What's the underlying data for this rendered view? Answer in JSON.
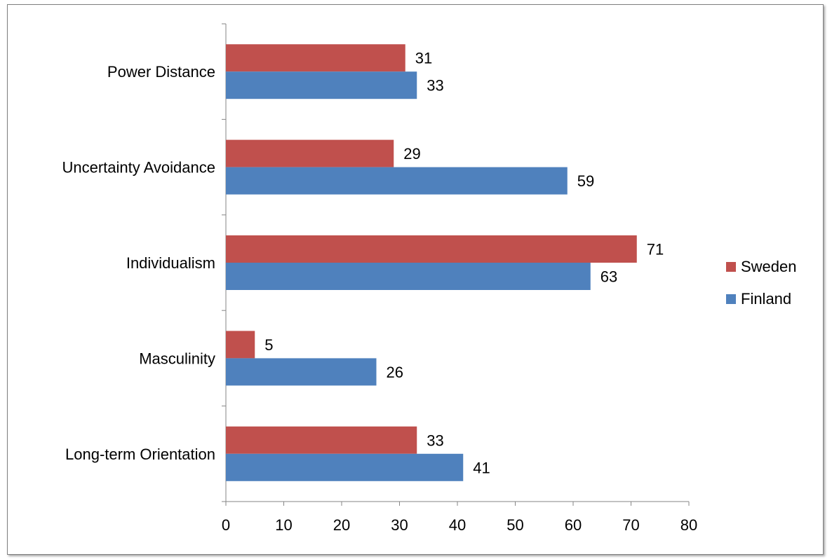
{
  "chart_data": {
    "type": "bar",
    "orientation": "horizontal",
    "title": "",
    "xlabel": "",
    "ylabel": "",
    "categories": [
      "Power Distance",
      "Uncertainty Avoidance",
      "Individualism",
      "Masculinity",
      "Long-term Orientation"
    ],
    "series": [
      {
        "name": "Sweden",
        "color": "#c0504d",
        "values": [
          31,
          29,
          71,
          5,
          33
        ]
      },
      {
        "name": "Finland",
        "color": "#4f81bd",
        "values": [
          33,
          59,
          63,
          26,
          41
        ]
      }
    ],
    "xlim": [
      0,
      80
    ],
    "xticks": [
      0,
      10,
      20,
      30,
      40,
      50,
      60,
      70,
      80
    ],
    "grid": false,
    "legend_position": "right",
    "data_labels": true
  }
}
